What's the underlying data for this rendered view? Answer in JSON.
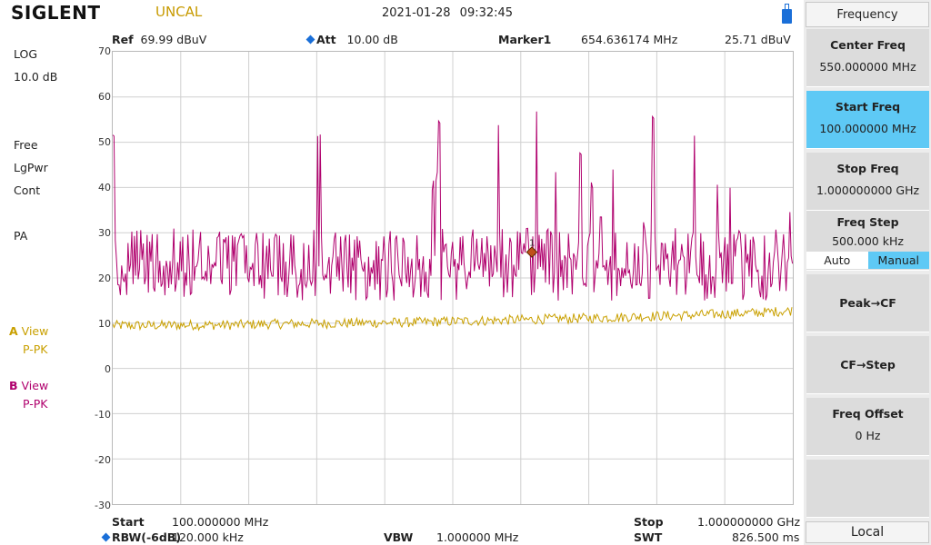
{
  "brand": "SIGLENT",
  "status": "UNCAL",
  "datetime": "2021-01-28  09:32:45",
  "header": {
    "ref_label": "Ref",
    "ref_value": "69.99 dBuV",
    "att_label": "Att",
    "att_value": "10.00 dB",
    "marker_label": "Marker1",
    "marker_freq": "654.636174 MHz",
    "marker_level": "25.71 dBuV"
  },
  "left": {
    "scale_type": "LOG",
    "scale_div": "10.0 dB",
    "sweep": "Free",
    "avg_type": "LgPwr",
    "mode": "Cont",
    "preamp": "PA",
    "trace_a_letter": "A",
    "trace_a_state": "View",
    "trace_a_det": "P-PK",
    "trace_b_letter": "B",
    "trace_b_state": "View",
    "trace_b_det": "P-PK"
  },
  "yaxis": {
    "min": -30,
    "max": 70,
    "ticks": [
      "70",
      "60",
      "50",
      "40",
      "30",
      "20",
      "10",
      "0",
      "-10",
      "-20",
      "-30"
    ]
  },
  "footer": {
    "start_label": "Start",
    "start_value": "100.000000 MHz",
    "rbw_label": "RBW(-6dB)",
    "rbw_value": "120.000 kHz",
    "vbw_label": "VBW",
    "vbw_value": "1.000000 MHz",
    "stop_label": "Stop",
    "stop_value": "1.000000000 GHz",
    "swt_label": "SWT",
    "swt_value": "826.500 ms"
  },
  "menu": {
    "title": "Frequency",
    "center_freq_label": "Center Freq",
    "center_freq_value": "550.000000 MHz",
    "start_freq_label": "Start Freq",
    "start_freq_value": "100.000000 MHz",
    "stop_freq_label": "Stop Freq",
    "stop_freq_value": "1.000000000 GHz",
    "freq_step_label": "Freq Step",
    "freq_step_value": "500.000 kHz",
    "auto_label": "Auto",
    "manual_label": "Manual",
    "peak_cf_label": "Peak→CF",
    "cf_step_label": "CF→Step",
    "freq_offset_label": "Freq Offset",
    "freq_offset_value": "0 Hz",
    "local_label": "Local"
  },
  "colors": {
    "trace_a": "#c9a000",
    "trace_b": "#b0006d",
    "marker": "#c0501a",
    "accent": "#5ec9f5"
  },
  "chart_data": {
    "type": "line",
    "x_range_mhz": [
      100,
      1000
    ],
    "ylim": [
      -30,
      70
    ],
    "y_unit": "dBuV",
    "grid": true,
    "series": [
      {
        "name": "A",
        "x": [
          100,
          150,
          200,
          250,
          300,
          350,
          400,
          450,
          500,
          550,
          600,
          650,
          700,
          750,
          800,
          850,
          900,
          950,
          1000
        ],
        "values": [
          9.5,
          9.5,
          9.6,
          9.6,
          9.8,
          9.9,
          10.0,
          10.1,
          10.2,
          10.4,
          10.6,
          10.8,
          11.0,
          11.2,
          11.5,
          11.7,
          12.0,
          12.3,
          12.8
        ]
      },
      {
        "name": "B",
        "x": [
          100,
          150,
          200,
          250,
          300,
          350,
          371,
          372,
          400,
          450,
          500,
          520,
          530,
          550,
          600,
          650,
          661,
          700,
          750,
          800,
          850,
          900,
          950,
          1000
        ],
        "values": [
          22,
          20,
          24,
          21,
          22,
          22,
          52,
          25,
          24,
          23,
          22,
          44,
          56,
          23,
          24,
          25,
          57,
          25,
          24,
          26,
          25,
          24,
          22,
          23
        ]
      }
    ],
    "marker": {
      "label": "1",
      "x_mhz": 654.636174,
      "y": 25.71
    }
  }
}
